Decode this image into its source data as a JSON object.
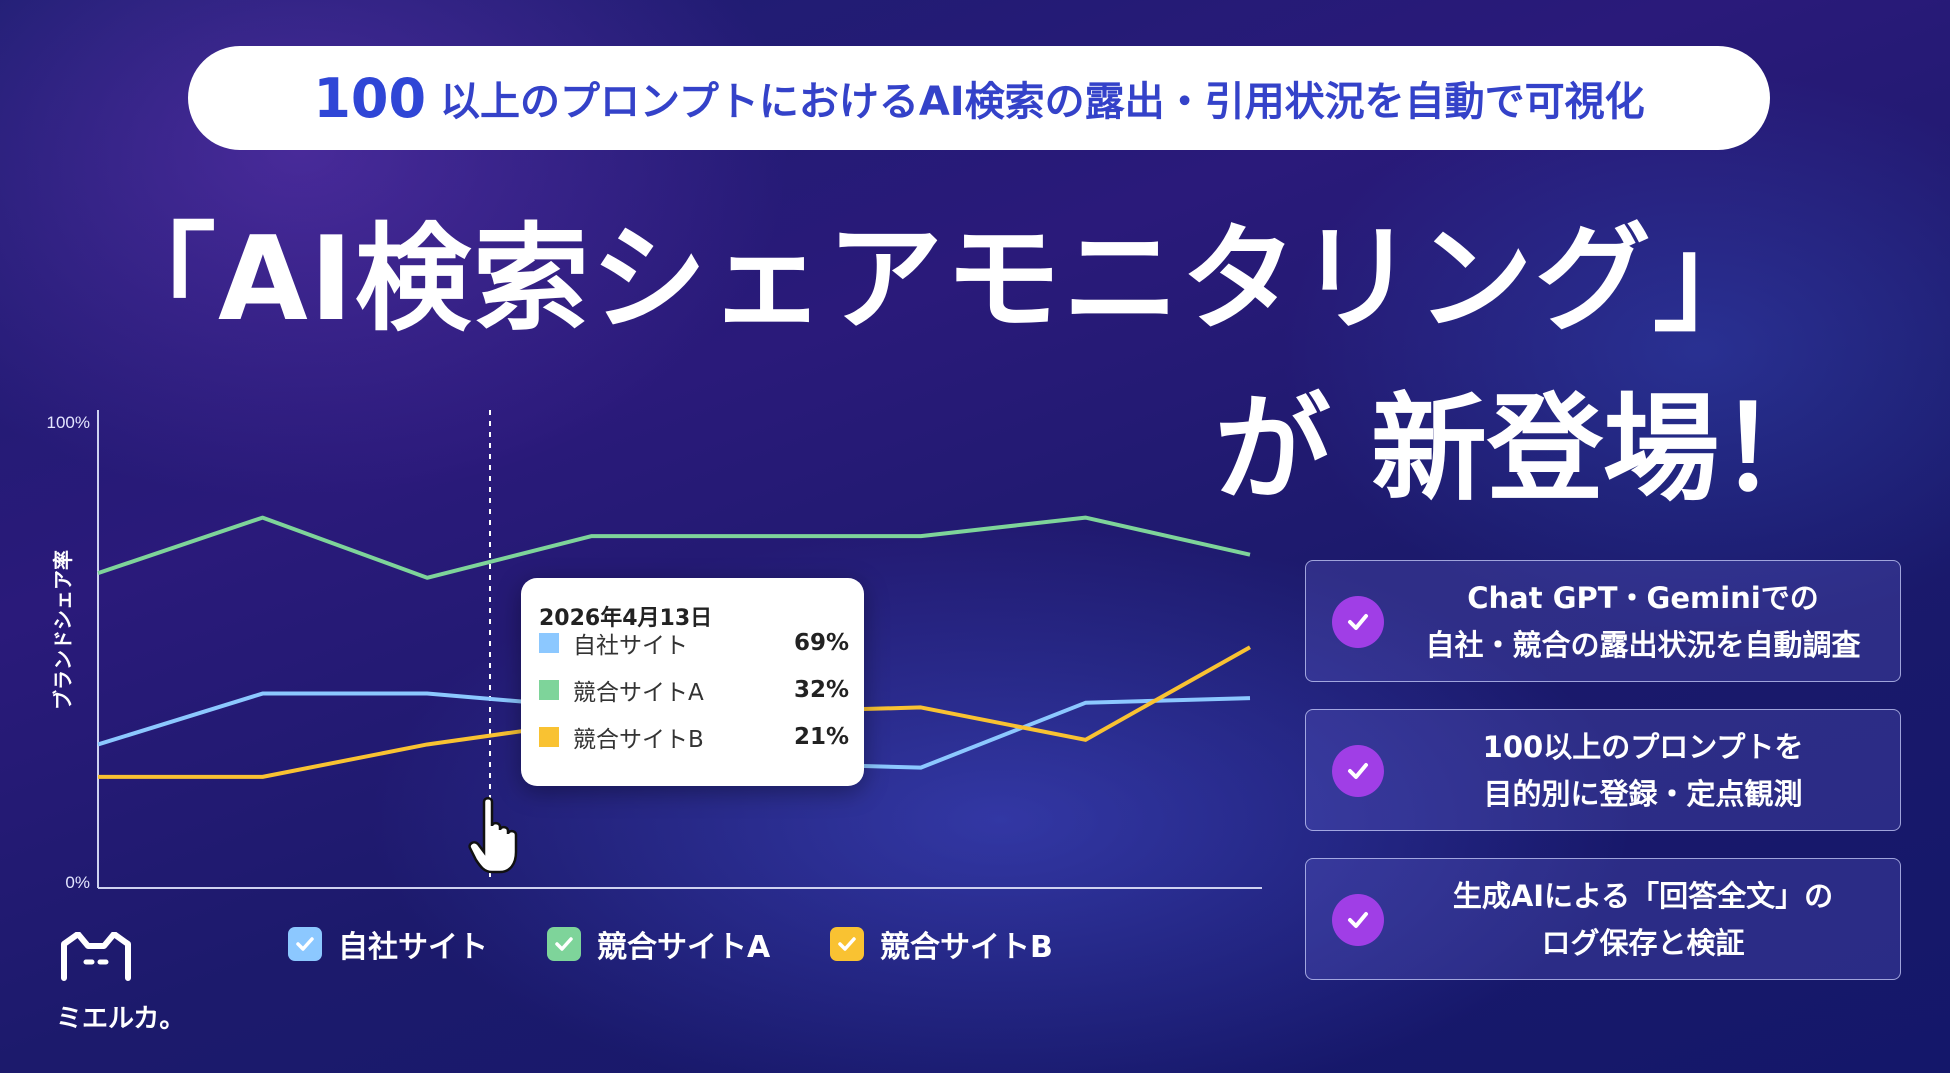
{
  "banner": {
    "pill_number": "100",
    "pill_text": "以上のプロンプトにおけるAI検索の露出・引用状況を自動で可視化",
    "headline": "「AI検索シェアモニタリング」",
    "subhead": "が 新登場！"
  },
  "chart_data": {
    "type": "line",
    "ylabel": "ブランドシェア率",
    "y_ticks": [
      "100%",
      "0%"
    ],
    "ylim": [
      0,
      100
    ],
    "x": [
      1,
      2,
      3,
      4,
      5,
      6,
      7,
      8
    ],
    "series": [
      {
        "name": "自社サイト",
        "color": "#8cc8ff",
        "values": [
          31,
          42,
          42,
          39,
          27,
          26,
          40,
          41
        ]
      },
      {
        "name": "競合サイトA",
        "color": "#7ed49a",
        "values": [
          68,
          80,
          67,
          76,
          76,
          76,
          80,
          72
        ]
      },
      {
        "name": "競合サイトB",
        "color": "#f9c232",
        "values": [
          24,
          24,
          31,
          36,
          38,
          39,
          32,
          52
        ]
      }
    ]
  },
  "tooltip": {
    "date": "2026年4月13日",
    "rows": [
      {
        "label": "自社サイト",
        "value": "69%",
        "color": "#8cc8ff"
      },
      {
        "label": "競合サイトA",
        "value": "32%",
        "color": "#7ed49a"
      },
      {
        "label": "競合サイトB",
        "value": "21%",
        "color": "#f9c232"
      }
    ]
  },
  "legend": [
    {
      "label": "自社サイト",
      "color": "#8cc8ff"
    },
    {
      "label": "競合サイトA",
      "color": "#7ed49a"
    },
    {
      "label": "競合サイトB",
      "color": "#f9c232"
    }
  ],
  "features": [
    {
      "line1": "Chat GPT・Geminiでの",
      "line2": "自社・競合の露出状況を自動調査"
    },
    {
      "line1": "100以上のプロンプトを",
      "line2": "目的別に登録・定点観測"
    },
    {
      "line1": "生成AIによる「回答全文」の",
      "line2": "ログ保存と検証"
    }
  ],
  "logo": {
    "text": "ミエルカ。"
  },
  "colors": {
    "accent_blue": "#2f46d6",
    "check_purple": "#a03ee6"
  },
  "icons": {
    "cursor": "hand-pointer-icon",
    "check": "check-icon"
  }
}
